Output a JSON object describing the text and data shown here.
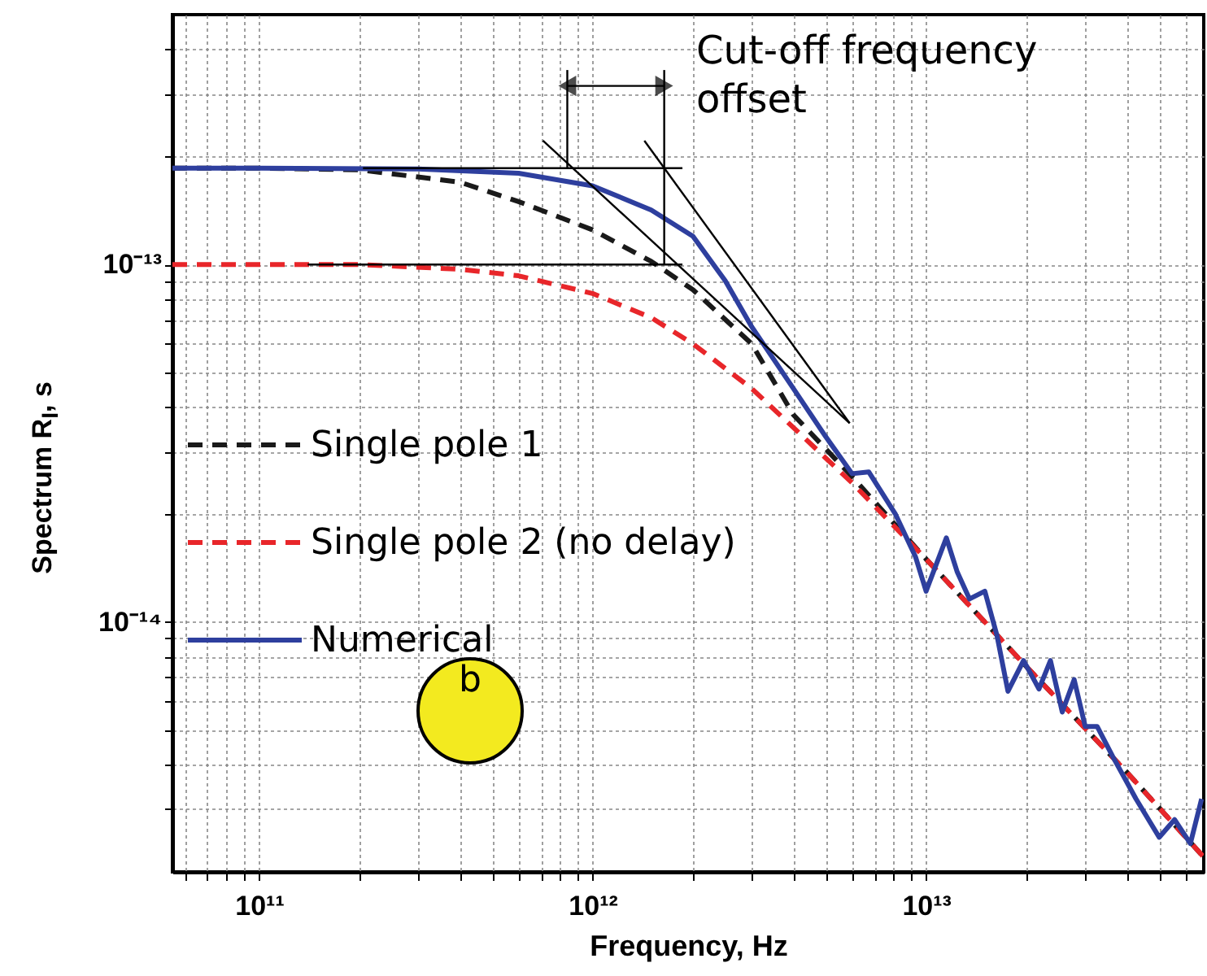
{
  "chart_data": {
    "type": "line",
    "xlabel": "Frequency, Hz",
    "ylabel": "Spectrum R$_{I}$, s",
    "annotations": [
      "Cut-off frequency offset",
      "b"
    ],
    "log": "xy",
    "grid": true,
    "legend": "left",
    "xlim": [
      55000000000.0,
      68000000000000.0
    ],
    "ylim": [
      2e-15,
      5e-13
    ],
    "xticks": [
      {
        "value": 60000000000.0,
        "label": null
      },
      {
        "value": 70000000000.0,
        "label": null
      },
      {
        "value": 80000000000.0,
        "label": null
      },
      {
        "value": 90000000000.0,
        "label": null
      },
      {
        "value": 100000000000.0,
        "label": "10¹¹"
      },
      {
        "value": 200000000000.0,
        "label": null
      },
      {
        "value": 300000000000.0,
        "label": null
      },
      {
        "value": 400000000000.0,
        "label": null
      },
      {
        "value": 500000000000.0,
        "label": null
      },
      {
        "value": 600000000000.0,
        "label": null
      },
      {
        "value": 700000000000.0,
        "label": null
      },
      {
        "value": 800000000000.0,
        "label": null
      },
      {
        "value": 900000000000.0,
        "label": null
      },
      {
        "value": 1000000000000.0,
        "label": "10¹²"
      },
      {
        "value": 2000000000000.0,
        "label": null
      },
      {
        "value": 3000000000000.0,
        "label": null
      },
      {
        "value": 4000000000000.0,
        "label": null
      },
      {
        "value": 5000000000000.0,
        "label": null
      },
      {
        "value": 6000000000000.0,
        "label": null
      },
      {
        "value": 7000000000000.0,
        "label": null
      },
      {
        "value": 8000000000000.0,
        "label": null
      },
      {
        "value": 9000000000000.0,
        "label": null
      },
      {
        "value": 10000000000000.0,
        "label": "10¹³"
      },
      {
        "value": 20000000000000.0,
        "label": null
      },
      {
        "value": 30000000000000.0,
        "label": null
      },
      {
        "value": 40000000000000.0,
        "label": null
      },
      {
        "value": 50000000000000.0,
        "label": null
      },
      {
        "value": 60000000000000.0,
        "label": null
      }
    ],
    "yticks": [
      {
        "value": 3e-15,
        "label": null
      },
      {
        "value": 4e-15,
        "label": null
      },
      {
        "value": 5e-15,
        "label": null
      },
      {
        "value": 6e-15,
        "label": null
      },
      {
        "value": 7e-15,
        "label": null
      },
      {
        "value": 8e-15,
        "label": null
      },
      {
        "value": 9e-15,
        "label": null
      },
      {
        "value": 1e-14,
        "label": "10⁻¹⁴"
      },
      {
        "value": 2e-14,
        "label": null
      },
      {
        "value": 3e-14,
        "label": null
      },
      {
        "value": 4e-14,
        "label": null
      },
      {
        "value": 5e-14,
        "label": null
      },
      {
        "value": 6e-14,
        "label": null
      },
      {
        "value": 7e-14,
        "label": null
      },
      {
        "value": 8e-14,
        "label": null
      },
      {
        "value": 9e-14,
        "label": null
      },
      {
        "value": 1e-13,
        "label": "10⁻¹³"
      },
      {
        "value": 2e-13,
        "label": null
      },
      {
        "value": 3e-13,
        "label": null
      },
      {
        "value": 4e-13,
        "label": null
      }
    ],
    "series": [
      {
        "name": "Single pole 1",
        "color": "#1a1a1a",
        "line_style": "dashed",
        "x": [
          55000000000.0,
          100000000000.0,
          200000000000.0,
          400000000000.0,
          600000000000.0,
          1000000000000.0,
          1500000000000.0,
          2000000000000.0,
          3000000000000.0,
          4000000000000.0,
          6000000000000.0,
          10000000000000.0,
          20000000000000.0,
          40000000000000.0,
          68000000000000.0
        ],
        "values": [
          1.86e-13,
          1.86e-13,
          1.84e-13,
          1.7e-13,
          1.5e-13,
          1.25e-13,
          1.02e-13,
          8.5e-14,
          6e-14,
          3.8e-14,
          2.55e-14,
          1.5e-14,
          7.5e-15,
          3.8e-15,
          2.2e-15
        ]
      },
      {
        "name": "Single pole 2 (no delay)",
        "color": "#e8262a",
        "line_style": "dashed",
        "x": [
          55000000000.0,
          200000000000.0,
          400000000000.0,
          600000000000.0,
          1000000000000.0,
          1500000000000.0,
          2000000000000.0,
          3000000000000.0,
          4000000000000.0,
          6000000000000.0,
          10000000000000.0,
          20000000000000.0,
          40000000000000.0,
          68000000000000.0
        ],
        "values": [
          1e-13,
          1e-13,
          9.7e-14,
          9.3e-14,
          8.3e-14,
          7.1e-14,
          6e-14,
          4.5e-14,
          3.5e-14,
          2.45e-14,
          1.5e-14,
          7.5e-15,
          3.8e-15,
          2.2e-15
        ]
      },
      {
        "name": "Numerical",
        "color": "#2e3f9e",
        "line_style": "solid",
        "x": [
          55000000000.0,
          100000000000.0,
          300000000000.0,
          600000000000.0,
          1000000000000.0,
          1500000000000.0,
          2000000000000.0,
          2500000000000.0,
          3000000000000.0,
          4000000000000.0,
          5000000000000.0,
          6000000000000.0,
          6730000000000.0,
          8100000000000.0,
          9300000000000.0,
          10000000000000.0,
          11500000000000.0,
          12400000000000.0,
          13500000000000.0,
          15000000000000.0,
          16300000000000.0,
          17600000000000.0,
          19600000000000.0,
          21800000000000.0,
          23600000000000.0,
          25600000000000.0,
          27800000000000.0,
          30000000000000.0,
          32600000000000.0,
          36300000000000.0,
          42600000000000.0,
          50000000000000.0,
          55600000000000.0,
          62000000000000.0,
          67000000000000.0
        ],
        "values": [
          1.86e-13,
          1.86e-13,
          1.85e-13,
          1.8e-13,
          1.66e-13,
          1.42e-13,
          1.2e-13,
          9e-14,
          6.7e-14,
          4.5e-14,
          3.3e-14,
          2.6e-14,
          2.63e-14,
          2e-14,
          1.52e-14,
          1.22e-14,
          1.72e-14,
          1.38e-14,
          1.16e-14,
          1.22e-14,
          9.2e-15,
          6.4e-15,
          7.8e-15,
          6.5e-15,
          7.8e-15,
          5.6e-15,
          6.9e-15,
          5.1e-15,
          5.1e-15,
          4.2e-15,
          3.2e-15,
          2.5e-15,
          2.8e-15,
          2.4e-15,
          3.2e-15
        ]
      },
      {
        "color": "#000000",
        "x": [
          205000000000.0,
          1860000000000.0
        ],
        "values": [
          1.86e-13,
          1.86e-13
        ]
      },
      {
        "color": "#000000",
        "x": [
          140000000000.0,
          1860000000000.0
        ],
        "values": [
          1e-13,
          1e-13
        ]
      },
      {
        "color": "#000000",
        "x": [
          710000000000.0,
          5900000000000.0
        ],
        "values": [
          2.22e-13,
          3.6e-14
        ]
      },
      {
        "color": "#000000",
        "x": [
          1430000000000.0,
          5900000000000.0
        ],
        "values": [
          2.22e-13,
          3.6e-14
        ]
      },
      {
        "color": "#000000",
        "x": [
          840000000000.0,
          840000000000.0
        ],
        "values": [
          3.5e-13,
          1.86e-13
        ]
      },
      {
        "color": "#000000",
        "x": [
          1640000000000.0,
          1640000000000.0
        ],
        "values": [
          3.5e-13,
          1e-13
        ]
      },
      {
        "color": "#000000",
        "marker": "triangle",
        "x": [
          840000000000.0,
          1640000000000.0
        ],
        "values": [
          3.16e-13,
          3.16e-13
        ]
      }
    ]
  }
}
